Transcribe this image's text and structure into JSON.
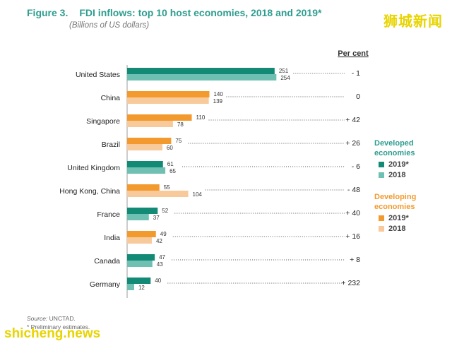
{
  "title": {
    "number": "Figure 3.",
    "text": "FDI inflows: top 10 host economies, 2018 and 2019*"
  },
  "subtitle": "(Billions of US dollars)",
  "watermark_top": "狮城新闻",
  "watermark_bottom": "shicheng.news",
  "source": "UNCTAD.",
  "source_label": "Source:",
  "note": "* Preliminary estimates.",
  "legend": {
    "developed_label": "Developed economies",
    "developing_label": "Developing economies",
    "developed_items": [
      {
        "label": "2019*",
        "color": "#138a76"
      },
      {
        "label": "2018",
        "color": "#6fc0b2"
      }
    ],
    "developing_items": [
      {
        "label": "2019*",
        "color": "#f29a2e"
      },
      {
        "label": "2018",
        "color": "#f8c99a"
      }
    ]
  },
  "chart_data": {
    "type": "bar",
    "orientation": "horizontal",
    "percent_header": "Per cent",
    "categories": [
      "United States",
      "China",
      "Singapore",
      "Brazil",
      "United Kingdom",
      "Hong Kong, China",
      "France",
      "India",
      "Canada",
      "Germany"
    ],
    "group": [
      "developed",
      "developing",
      "developing",
      "developing",
      "developed",
      "developing",
      "developed",
      "developing",
      "developed",
      "developed"
    ],
    "series": [
      {
        "name": "2019*",
        "values": [
          251,
          140,
          110,
          75,
          61,
          55,
          52,
          49,
          47,
          40
        ]
      },
      {
        "name": "2018",
        "values": [
          254,
          139,
          78,
          60,
          65,
          104,
          37,
          42,
          43,
          12
        ]
      }
    ],
    "percent_change": [
      "- 1",
      "0",
      "+ 42",
      "+ 26",
      "- 6",
      "- 48",
      "+ 40",
      "+ 16",
      "+ 8",
      "+ 232"
    ],
    "colors": {
      "developed": {
        "2019*": "#138a76",
        "2018": "#6fc0b2"
      },
      "developing": {
        "2019*": "#f29a2e",
        "2018": "#f8c99a"
      }
    },
    "xlim": [
      0,
      260
    ]
  }
}
